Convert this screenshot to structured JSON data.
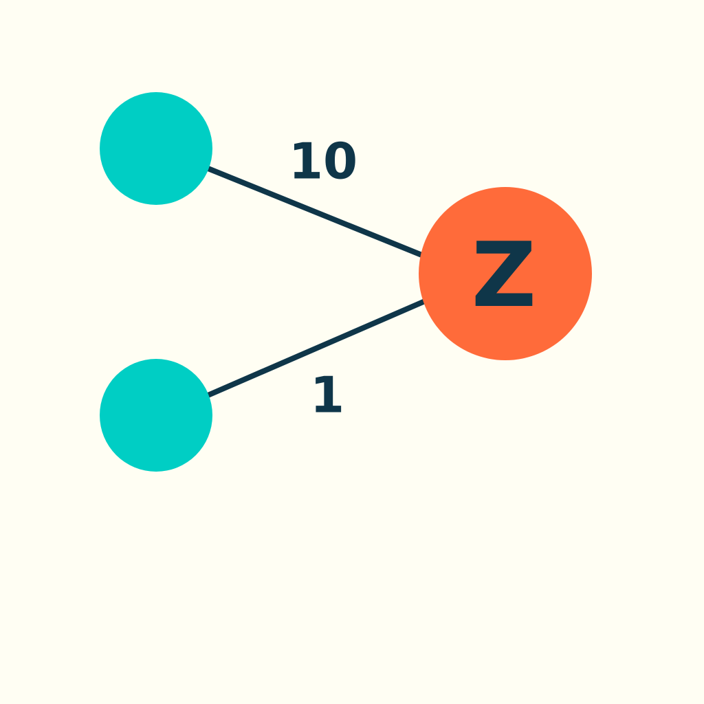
{
  "colors": {
    "background": "#FFFEF3",
    "source_node": "#00CEC4",
    "target_node": "#FF6B3A",
    "edge": "#0F3649",
    "text": "#0F3649"
  },
  "nodes": {
    "top": {
      "label": ""
    },
    "bottom": {
      "label": ""
    },
    "target": {
      "label": "Z"
    }
  },
  "edges": {
    "top_to_target": {
      "weight": "10"
    },
    "bottom_to_target": {
      "weight": "1"
    }
  }
}
